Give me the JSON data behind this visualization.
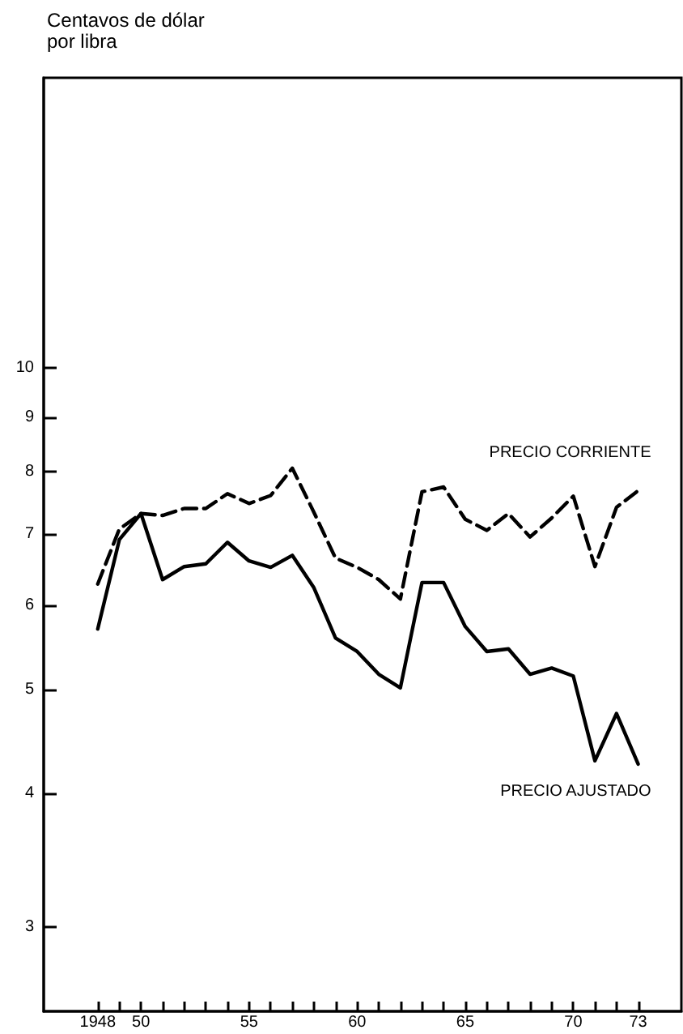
{
  "chart_data": {
    "type": "line",
    "ylabel": "Centavos de dólar por libra",
    "log": "y",
    "xlim": [
      1945.5,
      1975
    ],
    "ylim": [
      2.5,
      18.7
    ],
    "x": [
      1948,
      1949,
      1950,
      1951,
      1952,
      1953,
      1954,
      1955,
      1956,
      1957,
      1958,
      1959,
      1960,
      1961,
      1962,
      1963,
      1964,
      1965,
      1966,
      1967,
      1968,
      1969,
      1970,
      1971,
      1972,
      1973
    ],
    "xticks": [
      {
        "value": 1948,
        "label": "1948"
      },
      {
        "value": 1949,
        "label": null
      },
      {
        "value": 1950,
        "label": "50"
      },
      {
        "value": 1951,
        "label": null
      },
      {
        "value": 1952,
        "label": null
      },
      {
        "value": 1953,
        "label": null
      },
      {
        "value": 1954,
        "label": null
      },
      {
        "value": 1955,
        "label": "55"
      },
      {
        "value": 1956,
        "label": null
      },
      {
        "value": 1957,
        "label": null
      },
      {
        "value": 1958,
        "label": null
      },
      {
        "value": 1959,
        "label": null
      },
      {
        "value": 1960,
        "label": "60"
      },
      {
        "value": 1961,
        "label": null
      },
      {
        "value": 1962,
        "label": null
      },
      {
        "value": 1963,
        "label": null
      },
      {
        "value": 1964,
        "label": null
      },
      {
        "value": 1965,
        "label": "65"
      },
      {
        "value": 1966,
        "label": null
      },
      {
        "value": 1967,
        "label": null
      },
      {
        "value": 1968,
        "label": null
      },
      {
        "value": 1969,
        "label": null
      },
      {
        "value": 1970,
        "label": "70"
      },
      {
        "value": 1971,
        "label": null
      },
      {
        "value": 1972,
        "label": null
      },
      {
        "value": 1973,
        "label": "73"
      }
    ],
    "yticks": [
      3,
      4,
      5,
      6,
      7,
      8,
      9,
      10
    ],
    "grid": false,
    "marker": "none",
    "series": [
      {
        "name": "PRECIO CORRIENTE",
        "color": "#000000",
        "line_style": "dashed",
        "values": [
          6.28,
          7.07,
          7.31,
          7.28,
          7.39,
          7.39,
          7.63,
          7.47,
          7.6,
          8.06,
          7.33,
          6.64,
          6.51,
          6.34,
          6.08,
          7.66,
          7.74,
          7.22,
          7.05,
          7.31,
          6.95,
          7.24,
          7.59,
          6.52,
          7.41,
          7.68
        ]
      },
      {
        "name": "PRECIO AJUSTADO",
        "color": "#000000",
        "line_style": "solid",
        "values": [
          5.7,
          6.91,
          7.31,
          6.34,
          6.52,
          6.56,
          6.87,
          6.6,
          6.51,
          6.68,
          6.23,
          5.59,
          5.43,
          5.17,
          5.02,
          6.3,
          6.3,
          5.73,
          5.43,
          5.46,
          5.17,
          5.24,
          5.15,
          4.29,
          4.75,
          4.26
        ]
      }
    ]
  }
}
